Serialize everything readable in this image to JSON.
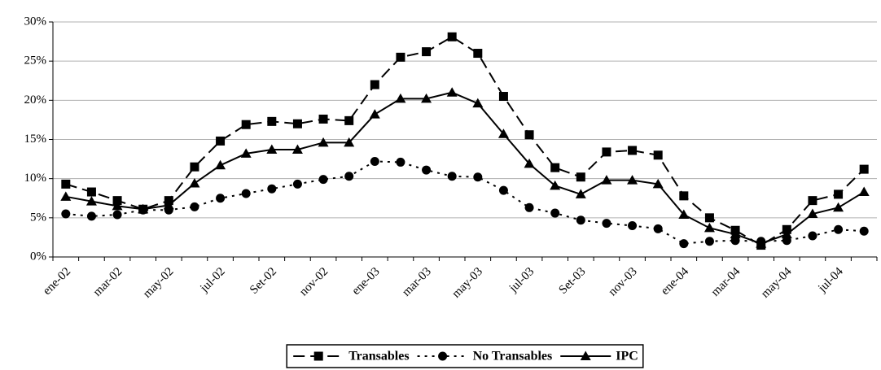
{
  "chart_data": {
    "type": "line",
    "categories": [
      "ene-02",
      null,
      "mar-02",
      null,
      "may-02",
      null,
      "jul-02",
      null,
      "Set-02",
      null,
      "nov-02",
      null,
      "ene-03",
      null,
      "mar-03",
      null,
      "may-03",
      null,
      "jul-03",
      null,
      "Set-03",
      null,
      "nov-03",
      null,
      "ene-04",
      null,
      "mar-04",
      null,
      "may-04",
      null,
      "jul-04",
      null
    ],
    "series": [
      {
        "name": "Transables",
        "color": "#000000",
        "line_style": "dashed",
        "marker": "square",
        "values": [
          9.3,
          8.3,
          7.2,
          6.1,
          7.2,
          11.5,
          14.8,
          16.9,
          17.3,
          17.0,
          17.6,
          17.4,
          22.0,
          25.5,
          26.2,
          28.1,
          26.0,
          20.5,
          15.6,
          11.4,
          10.2,
          13.4,
          13.6,
          13.0,
          7.8,
          5.0,
          3.4,
          1.5,
          3.5,
          7.2,
          8.0,
          11.2
        ]
      },
      {
        "name": "No Transables",
        "color": "#000000",
        "line_style": "dotted",
        "marker": "circle",
        "values": [
          5.5,
          5.2,
          5.4,
          6.0,
          6.0,
          6.4,
          7.5,
          8.1,
          8.7,
          9.3,
          9.9,
          10.3,
          12.2,
          12.1,
          11.1,
          10.3,
          10.2,
          8.5,
          6.3,
          5.6,
          4.7,
          4.3,
          4.0,
          3.6,
          1.7,
          2.0,
          2.1,
          2.0,
          2.1,
          2.7,
          3.5,
          3.3
        ]
      },
      {
        "name": "IPC",
        "color": "#000000",
        "line_style": "solid",
        "marker": "triangle",
        "values": [
          7.7,
          7.1,
          6.5,
          6.1,
          6.6,
          9.4,
          11.7,
          13.2,
          13.7,
          13.7,
          14.6,
          14.6,
          18.2,
          20.2,
          20.2,
          21.0,
          19.6,
          15.7,
          11.9,
          9.1,
          8.0,
          9.8,
          9.8,
          9.3,
          5.4,
          3.7,
          2.9,
          1.7,
          2.9,
          5.5,
          6.3,
          8.3
        ]
      }
    ],
    "ylim": [
      0,
      30
    ],
    "yticks": [
      {
        "value": 0,
        "label": "0%"
      },
      {
        "value": 5,
        "label": "5%"
      },
      {
        "value": 10,
        "label": "10%"
      },
      {
        "value": 15,
        "label": "15%"
      },
      {
        "value": 20,
        "label": "20%"
      },
      {
        "value": 25,
        "label": "25%"
      },
      {
        "value": 30,
        "label": "30%"
      }
    ],
    "grid": true,
    "legend": "bottom"
  }
}
